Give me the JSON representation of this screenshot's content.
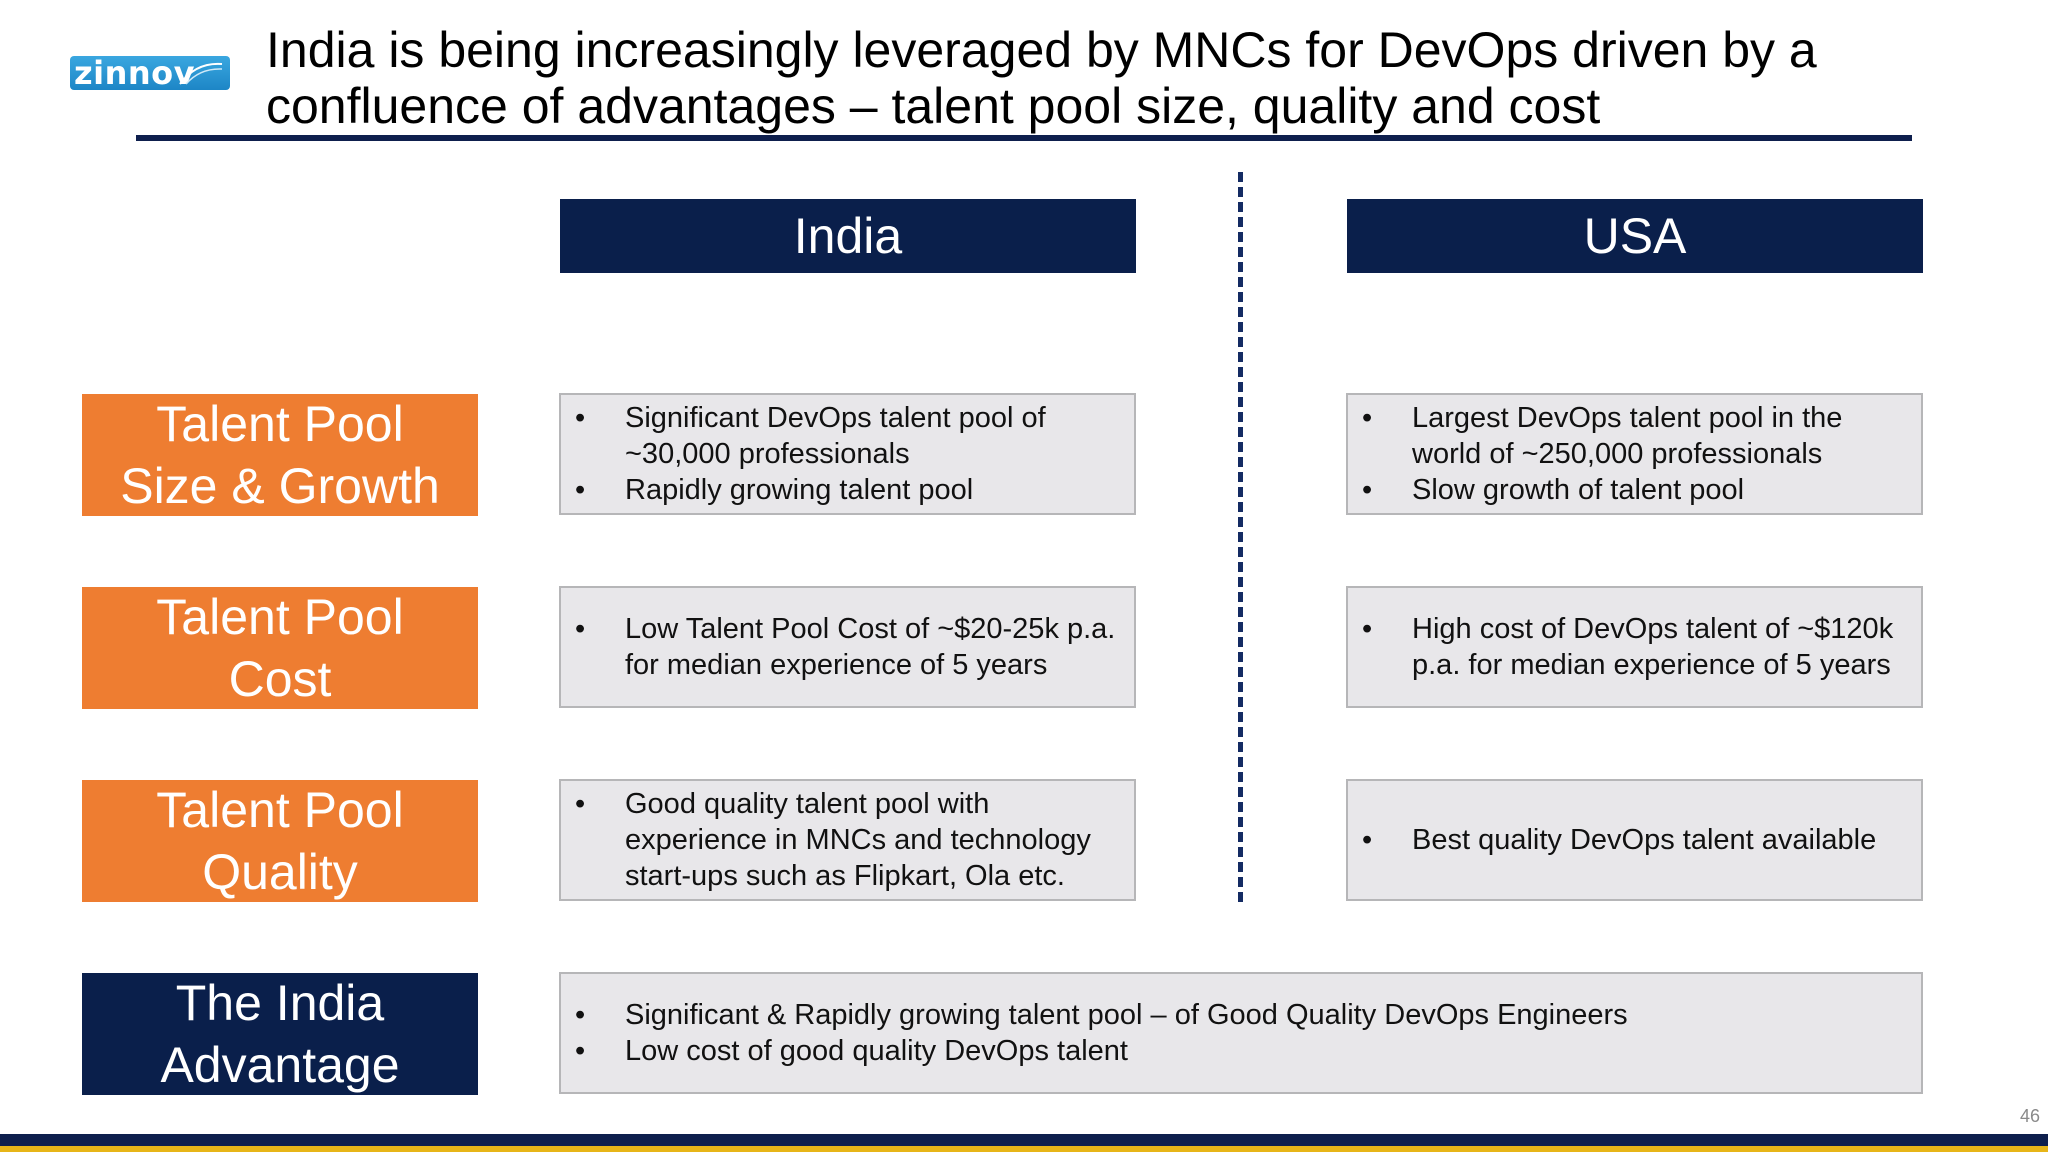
{
  "logo": {
    "text": "zinnov"
  },
  "title": "India is being increasingly leveraged by MNCs for DevOps driven by a confluence of advantages – talent pool size, quality and cost",
  "columns": {
    "india": "India",
    "usa": "USA"
  },
  "rows": [
    {
      "label": "Talent Pool Size & Growth",
      "india": [
        "Significant DevOps talent pool of ~30,000 professionals",
        "Rapidly growing talent pool"
      ],
      "usa": [
        "Largest DevOps talent pool in the world of ~250,000 professionals",
        "Slow growth of talent pool"
      ]
    },
    {
      "label": "Talent Pool Cost",
      "india": [
        "Low Talent Pool Cost of ~$20-25k p.a. for median experience of 5 years"
      ],
      "usa": [
        "High cost of DevOps talent of ~$120k p.a. for median experience of 5 years"
      ]
    },
    {
      "label": "Talent Pool Quality",
      "india": [
        "Good quality talent pool with experience in MNCs and technology start-ups such as Flipkart, Ola etc."
      ],
      "usa": [
        "Best quality DevOps talent available"
      ]
    }
  ],
  "advantage": {
    "label": "The India Advantage",
    "points": [
      "Significant & Rapidly growing talent pool – of Good Quality DevOps Engineers",
      "Low cost of good quality DevOps talent"
    ]
  },
  "bullet_char": "•",
  "page_number": "46",
  "colors": {
    "navy": "#0a1f4b",
    "orange": "#ee7d31",
    "cell_bg": "#e8e7ea",
    "gold": "#e7b518"
  }
}
